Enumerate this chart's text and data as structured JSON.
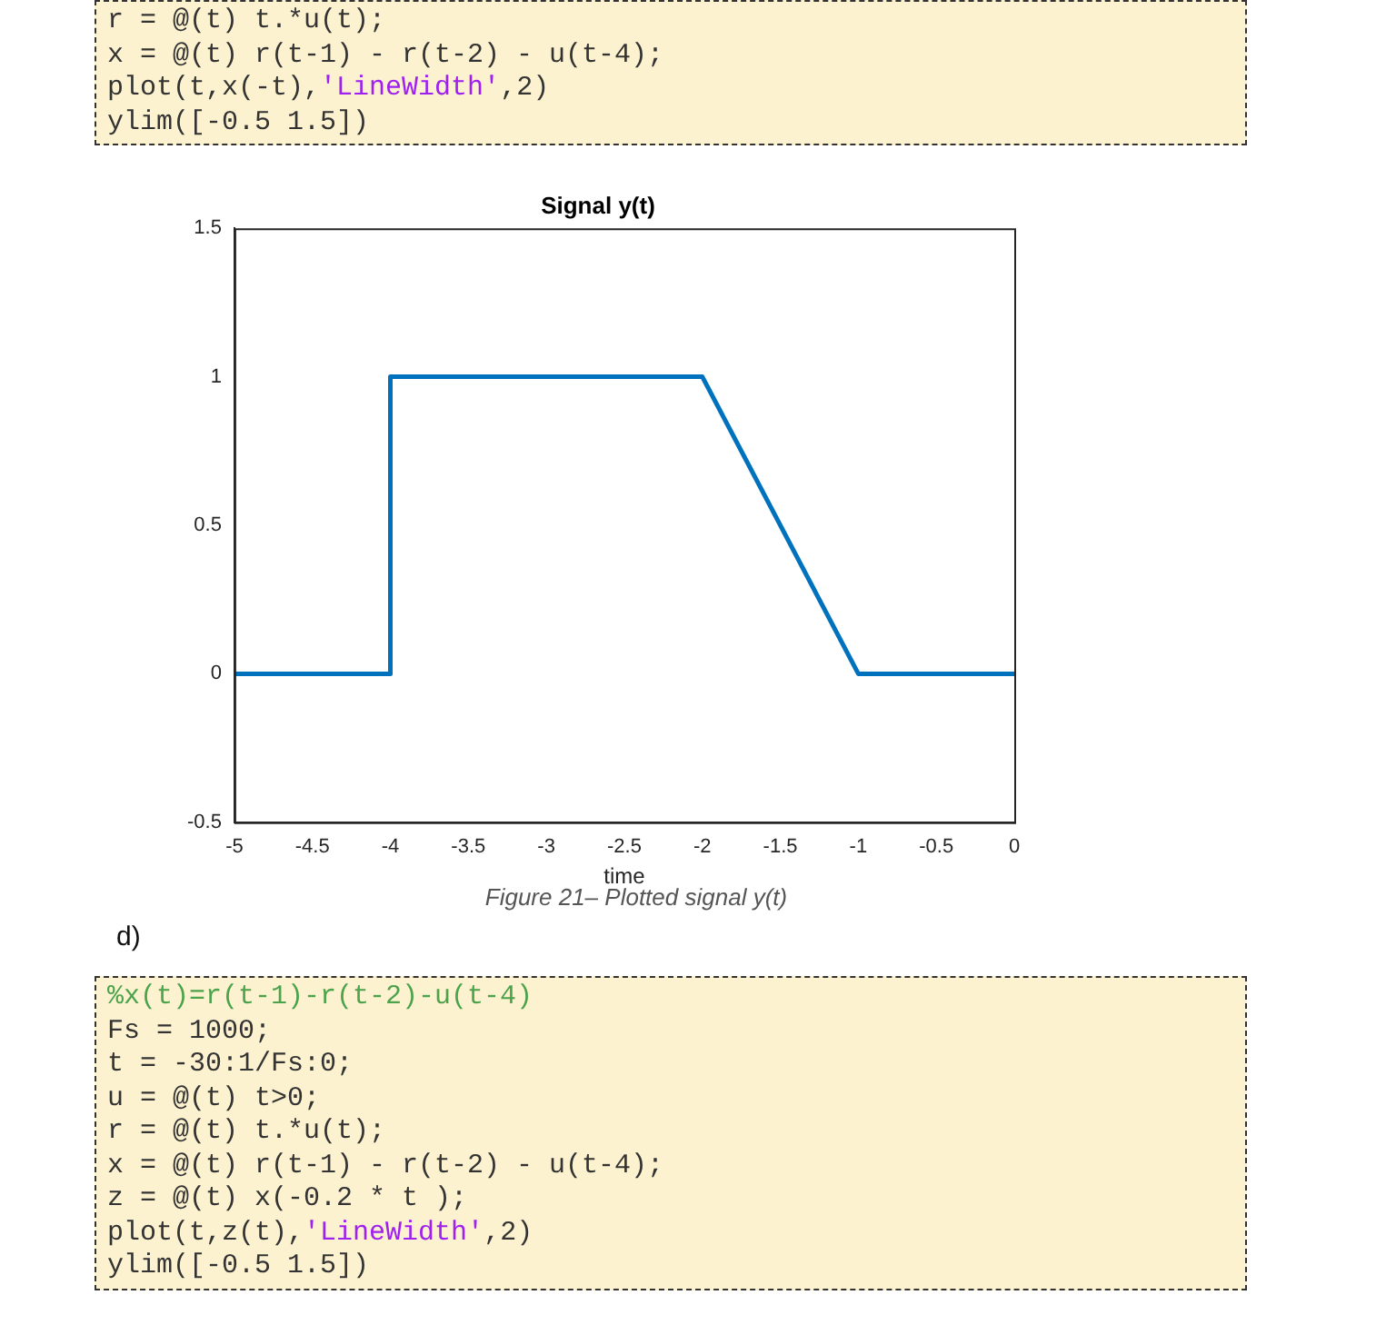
{
  "chart_data": {
    "type": "line",
    "title": "Signal y(t)",
    "xlabel": "time",
    "x": [
      -5,
      -4,
      -4,
      -2,
      -1,
      0
    ],
    "series": [
      {
        "color": "#0072bd",
        "values": [
          0,
          0,
          1,
          1,
          0,
          0
        ]
      }
    ],
    "xlim": [
      -5,
      0
    ],
    "xticks": [
      -5,
      -4.5,
      -4,
      -3.5,
      -3,
      -2.5,
      -2,
      -1.5,
      -1,
      -0.5,
      0
    ],
    "ylim": [
      -0.5,
      1.5
    ],
    "yticks": [
      -0.5,
      0,
      0.5,
      1,
      1.5
    ],
    "grid": false,
    "legend": false,
    "marker": "none",
    "line_style": "solid",
    "annotations": [
      "r = @(t) t.*u(t);\nx = @(t) r(t-1) - r(t-2) - u(t-4);\nplot(t,x(-t),'LineWidth',2)\nylim([-0.5 1.5])",
      "Figure 21– Plotted signal y(t)",
      "d)",
      "%x(t)=r(t-1)-r(t-2)-u(t-4)\nFs = 1000;\nt = -30:1/Fs:0;\nu = @(t) t>0;\nr = @(t) t.*u(t);\nx = @(t) r(t-1) - r(t-2) - u(t-4);\nz = @(t) x(-0.2 * t );\nplot(t,z(t),'LineWidth',2)\nylim([-0.5 1.5])"
    ]
  }
}
